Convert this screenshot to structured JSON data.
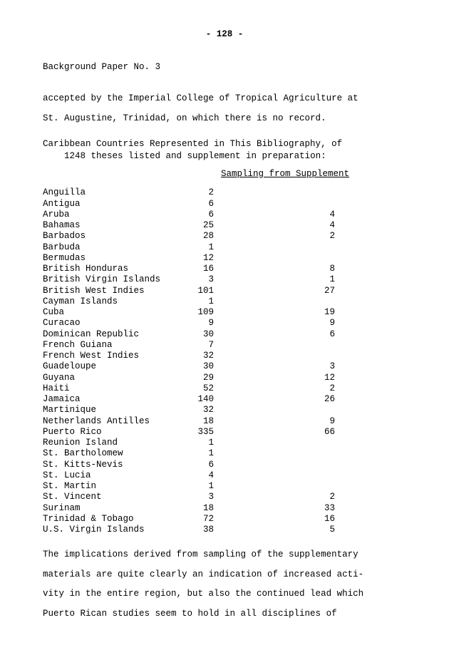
{
  "page_number": "- 128 -",
  "paper_header": "Background Paper No. 3",
  "opening_text_l1": "accepted by the Imperial College of Tropical Agriculture at",
  "opening_text_l2": "St. Augustine, Trinidad, on which there is no record.",
  "table_intro_l1": "Caribbean Countries Represented in This Bibliography, of",
  "table_intro_l2": "1248 theses listed and supplement in preparation:",
  "supplement_header": "Sampling from Supplement",
  "rows": [
    {
      "country": "Anguilla",
      "col1": "2",
      "col2": ""
    },
    {
      "country": "Antigua",
      "col1": "6",
      "col2": ""
    },
    {
      "country": "Aruba",
      "col1": "6",
      "col2": "4"
    },
    {
      "country": "Bahamas",
      "col1": "25",
      "col2": "4"
    },
    {
      "country": "Barbados",
      "col1": "28",
      "col2": "2"
    },
    {
      "country": "Barbuda",
      "col1": "1",
      "col2": ""
    },
    {
      "country": "Bermudas",
      "col1": "12",
      "col2": ""
    },
    {
      "country": "British Honduras",
      "col1": "16",
      "col2": "8"
    },
    {
      "country": "British Virgin Islands",
      "col1": "3",
      "col2": "1"
    },
    {
      "country": "British West Indies",
      "col1": "101",
      "col2": "27"
    },
    {
      "country": "Cayman Islands",
      "col1": "1",
      "col2": ""
    },
    {
      "country": "Cuba",
      "col1": "109",
      "col2": "19"
    },
    {
      "country": "Curacao",
      "col1": "9",
      "col2": "9"
    },
    {
      "country": "Dominican Republic",
      "col1": "30",
      "col2": "6"
    },
    {
      "country": "French Guiana",
      "col1": "7",
      "col2": ""
    },
    {
      "country": "French West Indies",
      "col1": "32",
      "col2": ""
    },
    {
      "country": "Guadeloupe",
      "col1": "30",
      "col2": "3"
    },
    {
      "country": "Guyana",
      "col1": "29",
      "col2": "12"
    },
    {
      "country": "Haiti",
      "col1": "52",
      "col2": "2"
    },
    {
      "country": "Jamaica",
      "col1": "140",
      "col2": "26"
    },
    {
      "country": "Martinique",
      "col1": "32",
      "col2": ""
    },
    {
      "country": "Netherlands Antilles",
      "col1": "18",
      "col2": "9"
    },
    {
      "country": "Puerto Rico",
      "col1": "335",
      "col2": "66"
    },
    {
      "country": "Reunion Island",
      "col1": "1",
      "col2": ""
    },
    {
      "country": "St. Bartholomew",
      "col1": "1",
      "col2": ""
    },
    {
      "country": "St. Kitts-Nevis",
      "col1": "6",
      "col2": ""
    },
    {
      "country": "St. Lucia",
      "col1": "4",
      "col2": ""
    },
    {
      "country": "St. Martin",
      "col1": "1",
      "col2": ""
    },
    {
      "country": "St. Vincent",
      "col1": "3",
      "col2": "2"
    },
    {
      "country": "Surinam",
      "col1": "18",
      "col2": "33"
    },
    {
      "country": "Trinidad & Tobago",
      "col1": "72",
      "col2": "16"
    },
    {
      "country": "U.S. Virgin Islands",
      "col1": "38",
      "col2": "5"
    }
  ],
  "closing_l1": "The implications derived from sampling of the supplementary",
  "closing_l2": "materials are quite clearly an indication of increased acti-",
  "closing_l3": "vity in the entire region, but also the continued lead which",
  "closing_l4": "Puerto Rican studies seem to hold in all disciplines of"
}
